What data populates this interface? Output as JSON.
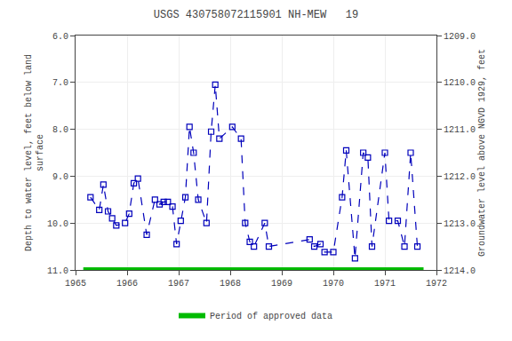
{
  "chart_data": {
    "type": "line",
    "title": "USGS 430758072115901 NH-MEW   19",
    "ylabel": "Depth to water level, feet below land\nsurface",
    "y2label": "Groundwater level above NGVD 1929, feet",
    "x": [
      1965.29,
      1965.46,
      1965.54,
      1965.63,
      1965.71,
      1965.79,
      1965.96,
      1966.04,
      1966.13,
      1966.21,
      1966.38,
      1966.54,
      1966.63,
      1966.71,
      1966.79,
      1966.88,
      1966.96,
      1967.04,
      1967.13,
      1967.21,
      1967.29,
      1967.38,
      1967.54,
      1967.63,
      1967.71,
      1967.79,
      1968.04,
      1968.21,
      1968.29,
      1968.38,
      1968.46,
      1968.67,
      1968.75,
      1969.54,
      1969.63,
      1969.75,
      1969.83,
      1970.0,
      1970.17,
      1970.25,
      1970.42,
      1970.58,
      1970.67,
      1970.75,
      1971.0,
      1971.08,
      1971.25,
      1971.38,
      1971.5,
      1971.63
    ],
    "series": [
      {
        "color": "#0000bb",
        "marker": "square-open",
        "line_style": "dashed",
        "values": [
          9.45,
          9.72,
          9.18,
          9.75,
          9.9,
          10.05,
          10.0,
          9.8,
          9.15,
          9.05,
          10.25,
          9.5,
          9.6,
          9.55,
          9.55,
          9.65,
          10.45,
          9.95,
          9.45,
          7.95,
          8.5,
          9.5,
          10.0,
          8.05,
          7.05,
          8.2,
          7.95,
          8.2,
          10.0,
          10.4,
          10.5,
          10.0,
          10.5,
          10.35,
          10.5,
          10.45,
          10.62,
          10.62,
          9.45,
          8.45,
          10.75,
          8.5,
          8.6,
          10.5,
          8.5,
          9.95,
          9.95,
          10.5,
          8.5,
          10.5
        ]
      },
      {
        "name": "Period of approved data",
        "color": "#00bb00",
        "line_style": "solid",
        "x": [
          1965.15,
          1971.75
        ],
        "values": [
          11.0,
          11.0
        ]
      }
    ],
    "xlim": [
      1965.0,
      1972.0
    ],
    "xticks": [
      1965,
      1966,
      1967,
      1968,
      1969,
      1970,
      1971,
      1972
    ],
    "ylim": [
      11.0,
      6.0
    ],
    "yticks": [
      {
        "value": 6.0,
        "label": "6.0"
      },
      {
        "value": 7.0,
        "label": "7.0"
      },
      {
        "value": 8.0,
        "label": "8.0"
      },
      {
        "value": 9.0,
        "label": "9.0"
      },
      {
        "value": 10.0,
        "label": "10.0"
      },
      {
        "value": 11.0,
        "label": "11.0"
      }
    ],
    "y2lim": [
      1214.0,
      1209.0
    ],
    "y2ticks": [
      {
        "value": 1209.0,
        "label": "1209.0"
      },
      {
        "value": 1210.0,
        "label": "1210.0"
      },
      {
        "value": 1211.0,
        "label": "1211.0"
      },
      {
        "value": 1212.0,
        "label": "1212.0"
      },
      {
        "value": 1213.0,
        "label": "1213.0"
      },
      {
        "value": 1214.0,
        "label": "1214.0"
      }
    ],
    "grid": true,
    "legend": "bottom"
  }
}
